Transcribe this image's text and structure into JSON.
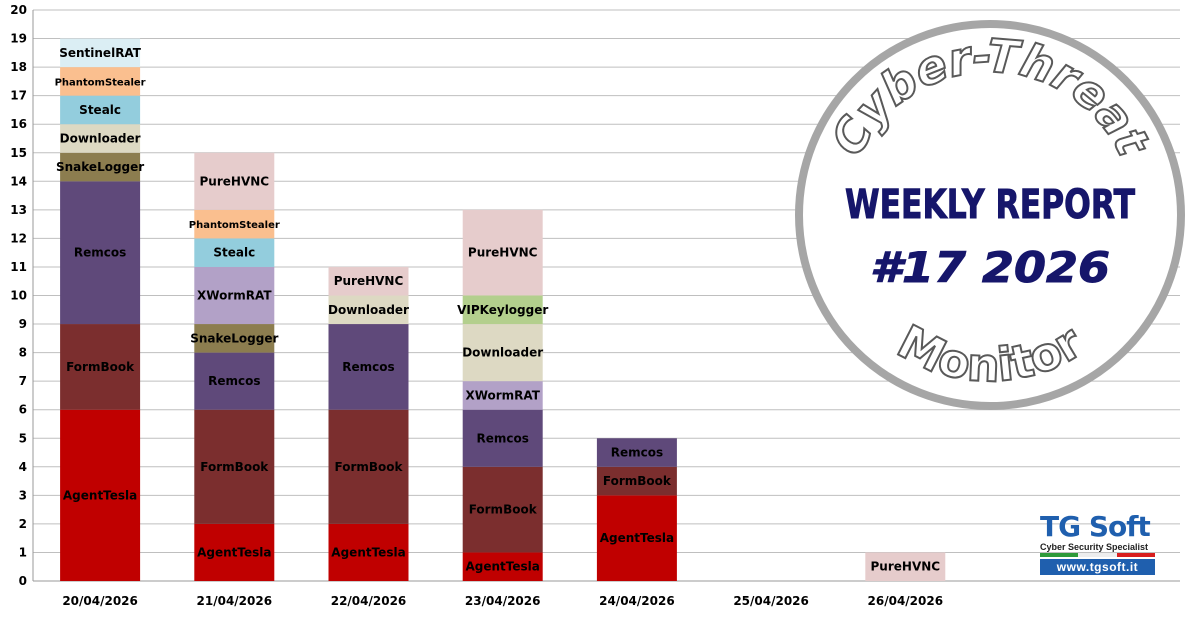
{
  "chart_data": {
    "type": "bar",
    "stacked": true,
    "categories": [
      "20/04/2026",
      "21/04/2026",
      "22/04/2026",
      "23/04/2026",
      "24/04/2026",
      "25/04/2026",
      "26/04/2026"
    ],
    "ylim": [
      0,
      20
    ],
    "yticks": [
      0,
      1,
      2,
      3,
      4,
      5,
      6,
      7,
      8,
      9,
      10,
      11,
      12,
      13,
      14,
      15,
      16,
      17,
      18,
      19,
      20
    ],
    "grid": true,
    "colors": {
      "AgentTesla": "#c00000",
      "FormBook": "#7b2e2e",
      "Remcos": "#5f497a",
      "SnakeLogger": "#8c7d4f",
      "Downloader": "#ddd9c3",
      "Stealc": "#93cddd",
      "PhantomStealer": "#fabf8f",
      "SentinelRAT": "#dbeef4",
      "XWormRAT": "#b2a1c7",
      "PureHVNC": "#e6cccc",
      "VIPKeylogger": "#b3cf8d"
    },
    "stacks": [
      [
        [
          "AgentTesla",
          6
        ],
        [
          "FormBook",
          3
        ],
        [
          "Remcos",
          5
        ],
        [
          "SnakeLogger",
          1
        ],
        [
          "Downloader",
          1
        ],
        [
          "Stealc",
          1
        ],
        [
          "PhantomStealer",
          1
        ],
        [
          "SentinelRAT",
          1
        ]
      ],
      [
        [
          "AgentTesla",
          2
        ],
        [
          "FormBook",
          4
        ],
        [
          "Remcos",
          2
        ],
        [
          "SnakeLogger",
          1
        ],
        [
          "XWormRAT",
          2
        ],
        [
          "Stealc",
          1
        ],
        [
          "PhantomStealer",
          1
        ],
        [
          "PureHVNC",
          2
        ]
      ],
      [
        [
          "AgentTesla",
          2
        ],
        [
          "FormBook",
          4
        ],
        [
          "Remcos",
          3
        ],
        [
          "Downloader",
          1
        ],
        [
          "PureHVNC",
          1
        ]
      ],
      [
        [
          "AgentTesla",
          1
        ],
        [
          "FormBook",
          3
        ],
        [
          "Remcos",
          2
        ],
        [
          "XWormRAT",
          1
        ],
        [
          "Downloader",
          2
        ],
        [
          "VIPKeylogger",
          1
        ],
        [
          "PureHVNC",
          3
        ]
      ],
      [
        [
          "AgentTesla",
          3
        ],
        [
          "FormBook",
          1
        ],
        [
          "Remcos",
          1
        ]
      ],
      [],
      [
        [
          "PureHVNC",
          1
        ]
      ]
    ]
  },
  "badge": {
    "top_arc": "Cyber-Threat",
    "line1": "WEEKLY REPORT",
    "line2": "#17 2026",
    "bottom_arc": "Monitor",
    "text_color": "#16166b",
    "ring_color": "#a6a6a6",
    "arc_text_color": "#595959"
  },
  "logo": {
    "name": "TG Soft",
    "tagline": "Cyber Security Specialist",
    "url": "www.tgsoft.it",
    "brand_color": "#1f5fae"
  }
}
